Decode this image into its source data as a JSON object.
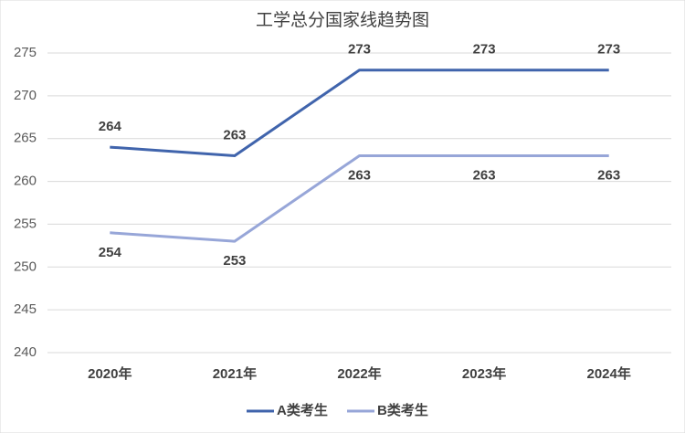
{
  "chart_data": {
    "type": "line",
    "title": "工学总分国家线趋势图",
    "categories": [
      "2020年",
      "2021年",
      "2022年",
      "2023年",
      "2024年"
    ],
    "series": [
      {
        "name": "A类考生",
        "color": "#4064ac",
        "values": [
          264,
          263,
          273,
          273,
          273
        ]
      },
      {
        "name": "B类考生",
        "color": "#97a6d8",
        "values": [
          254,
          253,
          263,
          263,
          263
        ]
      }
    ],
    "ylim": [
      240,
      275
    ],
    "yticks": [
      240,
      245,
      250,
      255,
      260,
      265,
      270,
      275
    ],
    "grid": true,
    "legend": "bottom"
  }
}
